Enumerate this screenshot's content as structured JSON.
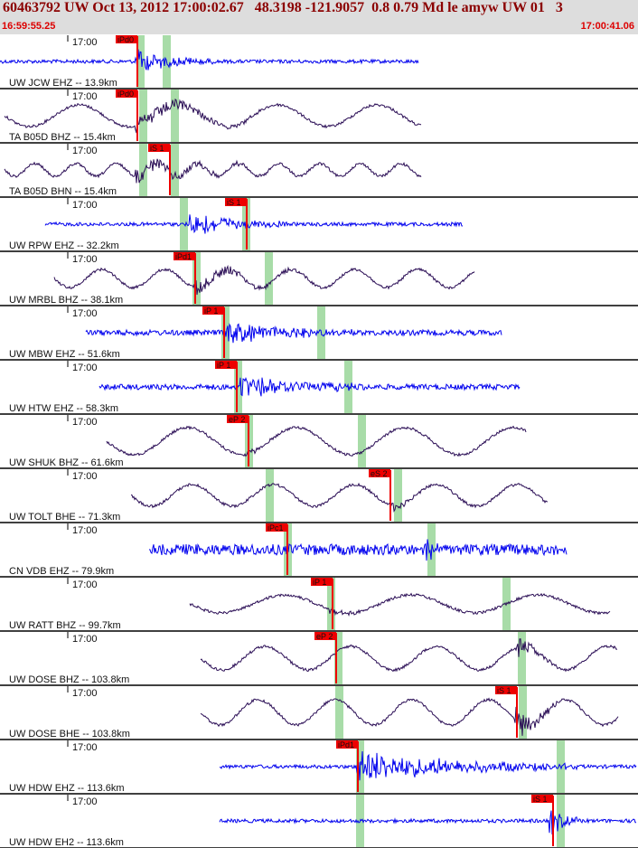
{
  "header": {
    "title": "60463792 UW Oct 13, 2012 17:00:02.67   48.3198 -121.9057  0.8 0.79 Md le amyw UW 01   3",
    "start_time": "16:59:55.25",
    "end_time": "17:00:41.06"
  },
  "minute_label": "17:00",
  "colors": {
    "header_bg": "#dddddd",
    "title": "#8b0000",
    "time": "#dd0000",
    "trace_blue": "#0000ee",
    "trace_purple": "#2a0d55",
    "pick_box": "#ee0000",
    "pick_window": "#a8dca8",
    "divider": "#000000"
  },
  "traces": [
    {
      "label": "UW JCW EHZ -- 13.9km",
      "color": "blue",
      "type": "noise",
      "x0": 0,
      "x1": 463,
      "amp": 2,
      "picks": [
        {
          "text": "iPd0",
          "x": 152
        }
      ],
      "greens": [
        155,
        184
      ],
      "burst": [
        150,
        235,
        14
      ]
    },
    {
      "label": "TA B05D BHZ -- 15.4km",
      "color": "purple",
      "type": "wave",
      "x0": 5,
      "x1": 466,
      "amp": 12,
      "period": 110,
      "picks": [
        {
          "text": "iPd0",
          "x": 152
        }
      ],
      "greens": [
        158,
        193
      ],
      "burst": [
        150,
        290,
        10
      ]
    },
    {
      "label": "TA B05D BHN -- 15.4km",
      "color": "purple",
      "type": "wave",
      "x0": 5,
      "x1": 466,
      "amp": 7,
      "period": 45,
      "picks": [
        {
          "text": "iS 1",
          "x": 188
        }
      ],
      "greens": [
        158,
        193
      ],
      "burst": [
        150,
        300,
        9
      ]
    },
    {
      "label": "UW RPW EHZ -- 32.2km",
      "color": "blue",
      "type": "noise",
      "x0": 50,
      "x1": 512,
      "amp": 2,
      "picks": [
        {
          "text": "iS 1",
          "x": 273
        }
      ],
      "greens": [
        203,
        272
      ],
      "burst": [
        210,
        320,
        14
      ]
    },
    {
      "label": "UW MRBL BHZ -- 38.1km",
      "color": "purple",
      "type": "wave",
      "x0": 60,
      "x1": 525,
      "amp": 10,
      "period": 70,
      "picks": [
        {
          "text": "iPd1",
          "x": 216
        }
      ],
      "greens": [
        217,
        297
      ],
      "burst": [
        215,
        330,
        9
      ]
    },
    {
      "label": "UW MBW EHZ -- 51.6km",
      "color": "blue",
      "type": "noise",
      "x0": 95,
      "x1": 555,
      "amp": 3,
      "picks": [
        {
          "text": "iP 1",
          "x": 248
        }
      ],
      "greens": [
        249,
        355
      ],
      "burst": [
        250,
        390,
        13
      ]
    },
    {
      "label": "UW HTW EHZ -- 58.3km",
      "color": "blue",
      "type": "noise",
      "x0": 110,
      "x1": 575,
      "amp": 3,
      "picks": [
        {
          "text": "iP 1",
          "x": 262
        }
      ],
      "greens": [
        263,
        385
      ],
      "burst": [
        265,
        410,
        13
      ]
    },
    {
      "label": "UW SHUK BHZ -- 61.6km",
      "color": "purple",
      "type": "wave",
      "x0": 118,
      "x1": 582,
      "amp": 15,
      "period": 120,
      "picks": [
        {
          "text": "eP 2",
          "x": 275
        }
      ],
      "greens": [
        275,
        400
      ],
      "burst": [
        272,
        300,
        5
      ]
    },
    {
      "label": "UW TOLT BHE -- 71.3km",
      "color": "purple",
      "type": "wave",
      "x0": 145,
      "x1": 606,
      "amp": 12,
      "period": 90,
      "picks": [
        {
          "text": "eS 2",
          "x": 432
        }
      ],
      "greens": [
        298,
        440
      ],
      "burst": [
        430,
        470,
        8
      ]
    },
    {
      "label": "CN VDB EHZ -- 79.9km",
      "color": "blue",
      "type": "noise",
      "x0": 165,
      "x1": 627,
      "amp": 6,
      "picks": [
        {
          "text": "iPc1",
          "x": 318
        }
      ],
      "greens": [
        318,
        477
      ],
      "burst": [
        470,
        500,
        13
      ]
    },
    {
      "label": "UW RATT BHZ -- 99.7km",
      "color": "purple",
      "type": "wave",
      "x0": 210,
      "x1": 675,
      "amp": 10,
      "period": 140,
      "picks": [
        {
          "text": "iP 1",
          "x": 368
        }
      ],
      "greens": [
        366,
        560
      ],
      "burst": [
        365,
        400,
        6
      ]
    },
    {
      "label": "UW DOSE BHZ -- 103.8km",
      "color": "purple",
      "type": "wave",
      "x0": 222,
      "x1": 683,
      "amp": 13,
      "period": 95,
      "picks": [
        {
          "text": "eP 2",
          "x": 372
        }
      ],
      "greens": [
        374,
        577
      ],
      "burst": [
        570,
        620,
        12
      ]
    },
    {
      "label": "UW DOSE BHE -- 103.8km",
      "color": "purple",
      "type": "wave",
      "x0": 222,
      "x1": 684,
      "amp": 14,
      "period": 85,
      "picks": [
        {
          "text": "iS 1",
          "x": 572
        }
      ],
      "greens": [
        375,
        578
      ],
      "burst": [
        570,
        620,
        17
      ]
    },
    {
      "label": "UW HDW EHZ -- 113.6km",
      "color": "blue",
      "type": "noise",
      "x0": 243,
      "x1": 704,
      "amp": 2,
      "picks": [
        {
          "text": "iPd1",
          "x": 396
        }
      ],
      "greens": [
        398,
        620
      ],
      "burst": [
        395,
        640,
        18
      ]
    },
    {
      "label": "UW HDW EH2 -- 113.6km",
      "color": "blue",
      "type": "noise",
      "x0": 243,
      "x1": 704,
      "amp": 2,
      "picks": [
        {
          "text": "iS 1",
          "x": 612
        }
      ],
      "greens": [
        398,
        620
      ],
      "burst": [
        608,
        640,
        18
      ]
    }
  ]
}
